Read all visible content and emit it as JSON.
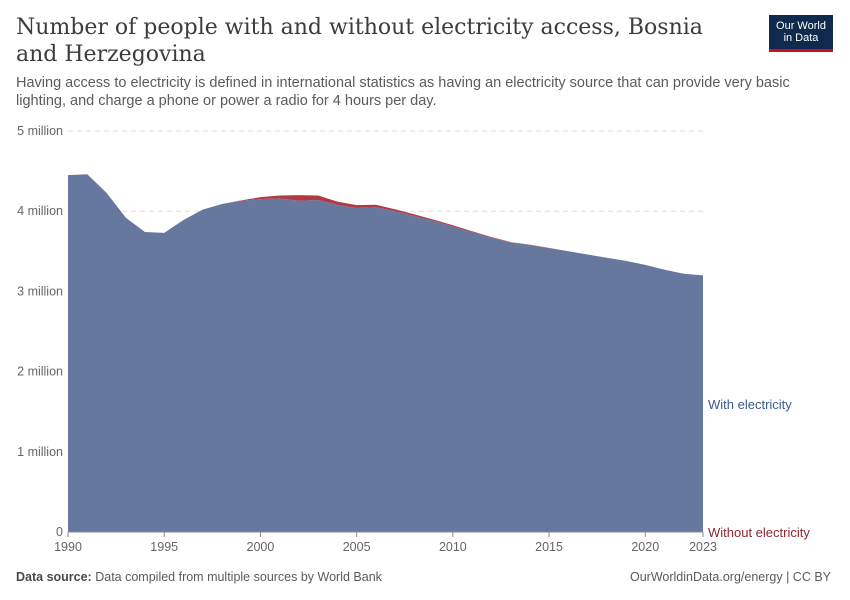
{
  "header": {
    "title": "Number of people with and without electricity access, Bosnia and Herzegovina",
    "subtitle": "Having access to electricity is defined in international statistics as having an electricity source that can provide very basic lighting, and charge a phone or power a radio for 4 hours per day."
  },
  "logo": {
    "line1": "Our World",
    "line2": "in Data"
  },
  "footer": {
    "source_label": "Data source:",
    "source_text": "Data compiled from multiple sources by World Bank",
    "credit": "OurWorldinData.org/energy | CC BY"
  },
  "colors": {
    "with": "#66789e",
    "without": "#b13a45",
    "with_label": "#3b5a8c",
    "without_label": "#8b2634",
    "grid": "#dddddd"
  },
  "chart_data": {
    "type": "area",
    "stacked": true,
    "x": [
      1990,
      1991,
      1992,
      1993,
      1994,
      1995,
      1996,
      1997,
      1998,
      1999,
      2000,
      2001,
      2002,
      2003,
      2004,
      2005,
      2006,
      2007,
      2008,
      2009,
      2010,
      2011,
      2012,
      2013,
      2014,
      2015,
      2016,
      2017,
      2018,
      2019,
      2020,
      2021,
      2022,
      2023
    ],
    "series": [
      {
        "name": "With electricity",
        "values": [
          4450000,
          4460000,
          4230000,
          3920000,
          3740000,
          3730000,
          3890000,
          4020000,
          4090000,
          4130000,
          4150000,
          4160000,
          4130000,
          4140000,
          4080000,
          4040000,
          4050000,
          4000000,
          3940000,
          3880000,
          3810000,
          3740000,
          3670000,
          3610000,
          3580000,
          3540000,
          3500000,
          3460000,
          3420000,
          3380000,
          3330000,
          3270000,
          3220000,
          3200000
        ]
      },
      {
        "name": "Without electricity",
        "values": [
          0,
          0,
          0,
          0,
          0,
          0,
          0,
          0,
          0,
          5000,
          25000,
          35000,
          70000,
          55000,
          40000,
          35000,
          30000,
          25000,
          20000,
          15000,
          15000,
          10000,
          8000,
          5000,
          3000,
          2000,
          1000,
          0,
          0,
          0,
          0,
          0,
          0,
          0
        ]
      }
    ],
    "ylim": [
      0,
      5000000
    ],
    "y_ticks": [
      0,
      1000000,
      2000000,
      3000000,
      4000000,
      5000000
    ],
    "y_tick_labels": [
      "0",
      "1 million",
      "2 million",
      "3 million",
      "4 million",
      "5 million"
    ],
    "x_ticks": [
      1990,
      1995,
      2000,
      2005,
      2010,
      2015,
      2020,
      2023
    ],
    "x_tick_labels": [
      "1990",
      "1995",
      "2000",
      "2005",
      "2010",
      "2015",
      "2020",
      "2023"
    ],
    "grid": "horizontal dashed",
    "legend": "right, inline labels"
  }
}
